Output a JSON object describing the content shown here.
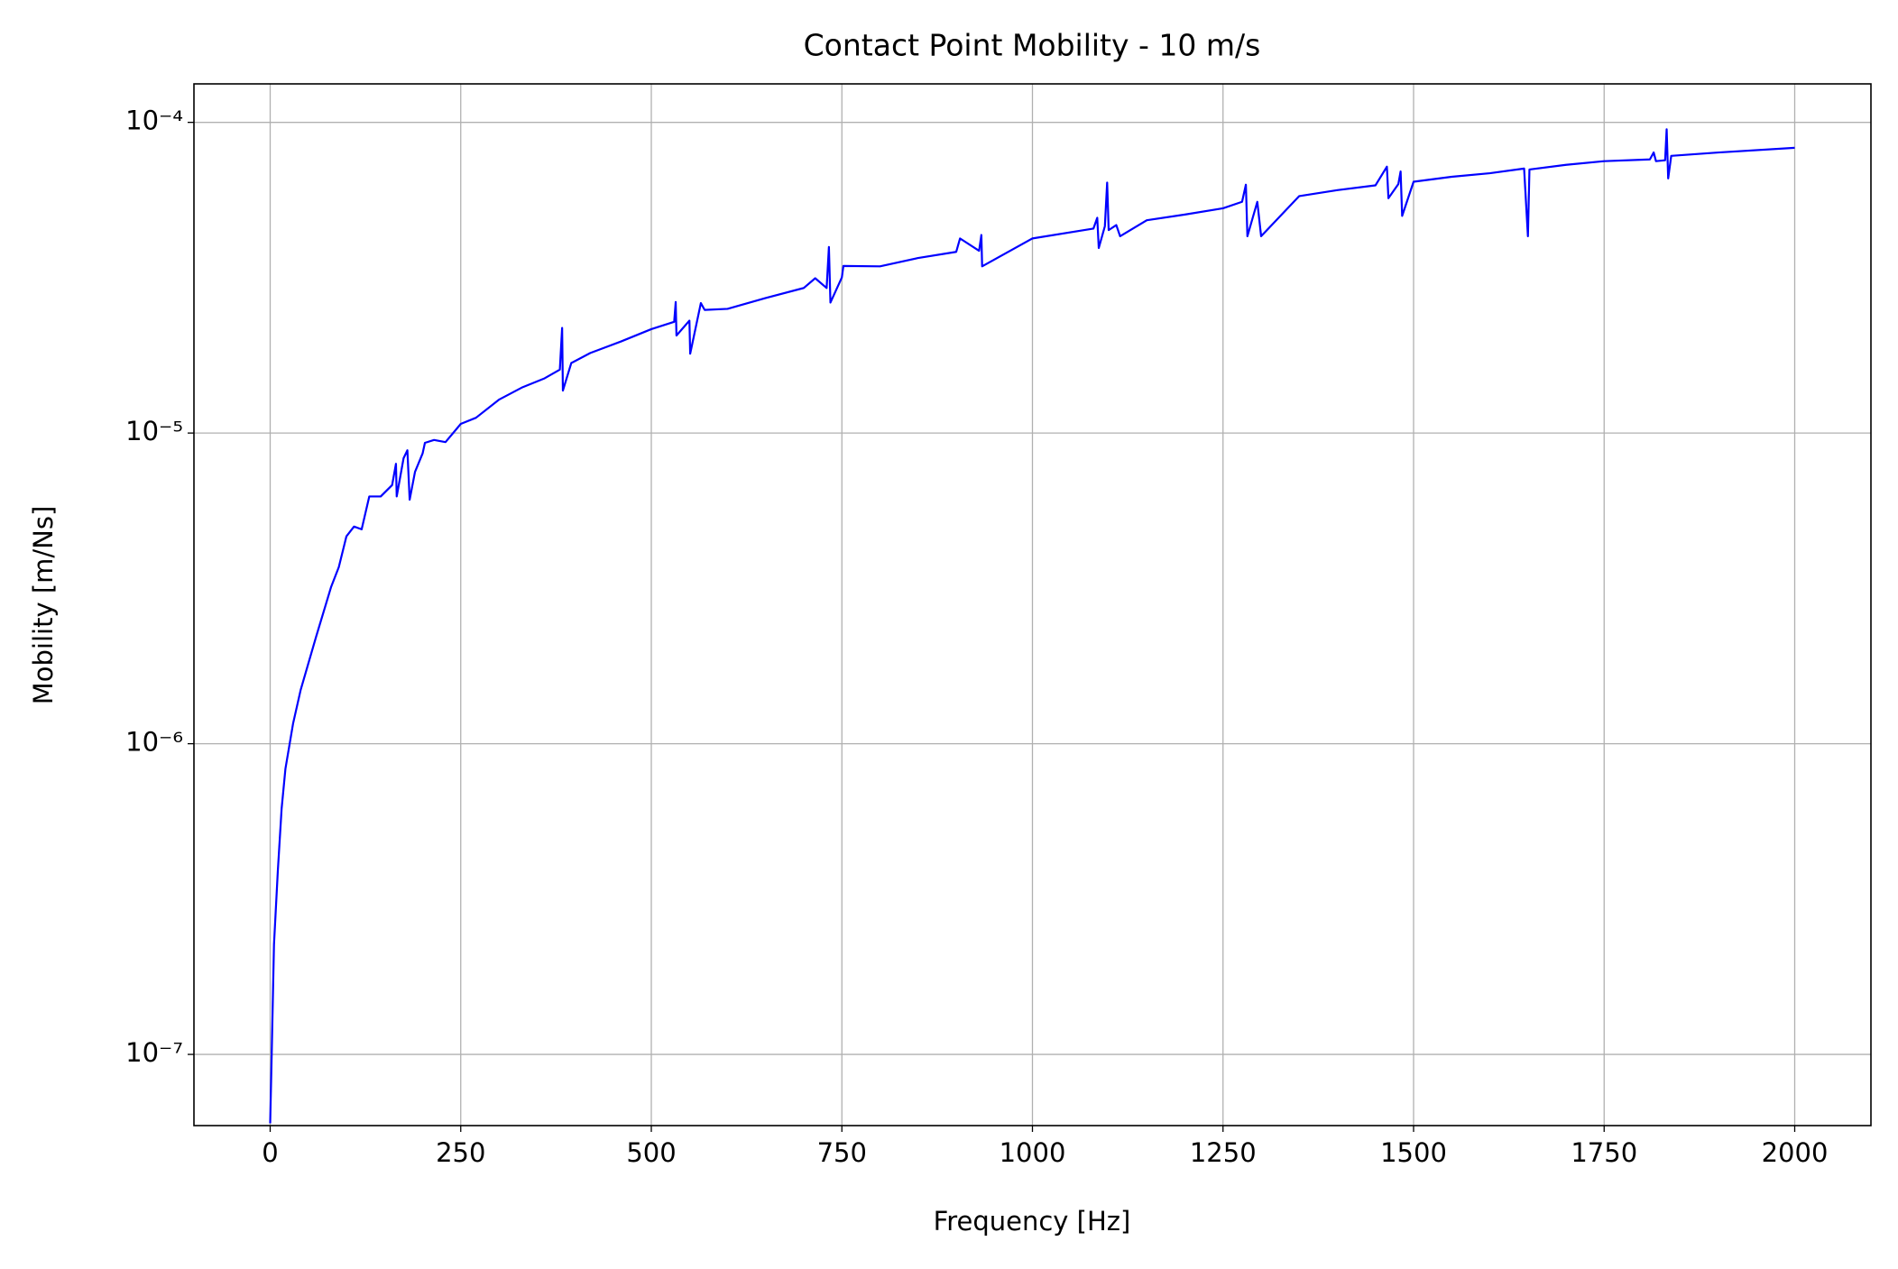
{
  "chart_data": {
    "type": "line",
    "title": "Contact Point Mobility - 10 m/s",
    "x_label": "Frequency [Hz]",
    "y_label": "Mobility [m/Ns]",
    "x": [
      0,
      2,
      5,
      10,
      15,
      20,
      30,
      40,
      60,
      80,
      90,
      100,
      110,
      120,
      130,
      145,
      160,
      165,
      166,
      175,
      180,
      183,
      190,
      200,
      203,
      215,
      230,
      250,
      270,
      300,
      330,
      360,
      380,
      383,
      384,
      395,
      420,
      460,
      500,
      530,
      532,
      533,
      550,
      551,
      565,
      570,
      600,
      650,
      700,
      715,
      730,
      733,
      735,
      750,
      752,
      800,
      850,
      900,
      905,
      930,
      933,
      934,
      1000,
      1080,
      1085,
      1087,
      1095,
      1098,
      1100,
      1110,
      1115,
      1150,
      1200,
      1250,
      1275,
      1280,
      1282,
      1295,
      1300,
      1350,
      1400,
      1450,
      1465,
      1467,
      1480,
      1483,
      1485,
      1500,
      1550,
      1600,
      1645,
      1650,
      1652,
      1700,
      1750,
      1810,
      1815,
      1818,
      1830,
      1832,
      1834,
      1838,
      1900,
      2000
    ],
    "series": [
      {
        "name": "Mobility",
        "color": "#0000ff",
        "values": [
          6e-08,
          1e-07,
          2.26e-07,
          3.88e-07,
          6.18e-07,
          8.3e-07,
          1.16e-06,
          1.49e-06,
          2.2e-06,
          3.2e-06,
          3.7e-06,
          4.65e-06,
          5e-06,
          4.9e-06,
          6.25e-06,
          6.25e-06,
          6.8e-06,
          7.96e-06,
          6.25e-06,
          8.3e-06,
          8.8e-06,
          6.1e-06,
          7.5e-06,
          8.6e-06,
          9.3e-06,
          9.5e-06,
          9.35e-06,
          1.07e-05,
          1.12e-05,
          1.28e-05,
          1.4e-05,
          1.5e-05,
          1.6e-05,
          2.18e-05,
          1.37e-05,
          1.68e-05,
          1.81e-05,
          1.97e-05,
          2.16e-05,
          2.28e-05,
          2.64e-05,
          2.06e-05,
          2.3e-05,
          1.8e-05,
          2.62e-05,
          2.49e-05,
          2.51e-05,
          2.72e-05,
          2.93e-05,
          3.15e-05,
          2.93e-05,
          3.97e-05,
          2.63e-05,
          3.17e-05,
          3.45e-05,
          3.44e-05,
          3.66e-05,
          3.83e-05,
          4.23e-05,
          3.86e-05,
          4.34e-05,
          3.44e-05,
          4.23e-05,
          4.55e-05,
          4.93e-05,
          3.94e-05,
          4.63e-05,
          6.4e-05,
          4.5e-05,
          4.67e-05,
          4.3e-05,
          4.84e-05,
          5.05e-05,
          5.29e-05,
          5.55e-05,
          6.3e-05,
          4.3e-05,
          5.55e-05,
          4.3e-05,
          5.79e-05,
          6.05e-05,
          6.27e-05,
          7.2e-05,
          5.7e-05,
          6.33e-05,
          6.95e-05,
          5e-05,
          6.44e-05,
          6.68e-05,
          6.86e-05,
          7.1e-05,
          4.3e-05,
          7.05e-05,
          7.3e-05,
          7.5e-05,
          7.6e-05,
          8e-05,
          7.5e-05,
          7.55e-05,
          9.5e-05,
          6.6e-05,
          7.8e-05,
          8e-05,
          8.28e-05
        ]
      }
    ],
    "xlim": [
      -100,
      2100
    ],
    "xticks": [
      0,
      250,
      500,
      750,
      1000,
      1250,
      1500,
      1750,
      2000
    ],
    "ylim": [
      5.9e-08,
      0.000133
    ],
    "log_y": true,
    "yticks": [
      {
        "value": 1e-07,
        "label": "10⁻⁷"
      },
      {
        "value": 1e-06,
        "label": "10⁻⁶"
      },
      {
        "value": 1e-05,
        "label": "10⁻⁵"
      },
      {
        "value": 0.0001,
        "label": "10⁻⁴"
      }
    ],
    "grid": true
  }
}
